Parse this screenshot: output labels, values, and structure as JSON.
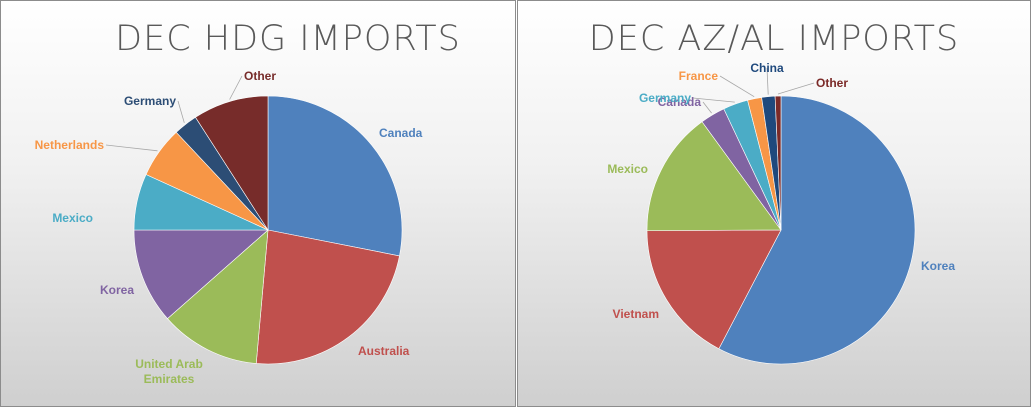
{
  "chart_data": [
    {
      "type": "pie",
      "title": "DEC HDG IMPORTS",
      "categories": [
        "Canada",
        "Australia",
        "United Arab Emirates",
        "Korea",
        "Mexico",
        "Netherlands",
        "Germany",
        "Other"
      ],
      "values": [
        28.1,
        23.3,
        12.1,
        11.5,
        6.8,
        6.2,
        2.9,
        9.1
      ],
      "colors": [
        "#4f81bd",
        "#c0504d",
        "#9bbb59",
        "#8064a2",
        "#4bacc6",
        "#f79646",
        "#2c4d75",
        "#772c2a"
      ],
      "label_lines": [
        [
          "Canada"
        ],
        [
          "Australia"
        ],
        [
          "United Arab",
          "Emirates"
        ],
        [
          "Korea"
        ],
        [
          "Mexico"
        ],
        [
          "Netherlands"
        ],
        [
          "Germany"
        ],
        [
          "Other"
        ]
      ]
    },
    {
      "type": "pie",
      "title": "DEC AZ/AL IMPORTS",
      "categories": [
        "Korea",
        "Vietnam",
        "Mexico",
        "Canada",
        "Germany",
        "France",
        "China",
        "Other"
      ],
      "values": [
        57.5,
        17.2,
        15.0,
        3.0,
        3.0,
        1.7,
        1.6,
        0.7
      ],
      "colors": [
        "#4f81bd",
        "#c0504d",
        "#9bbb59",
        "#8064a2",
        "#4bacc6",
        "#f79646",
        "#1f497d",
        "#7b2a28"
      ],
      "label_lines": [
        [
          "Korea"
        ],
        [
          "Vietnam"
        ],
        [
          "Mexico"
        ],
        [
          "Canada"
        ],
        [
          "Germany"
        ],
        [
          "France"
        ],
        [
          "China"
        ],
        [
          "Other"
        ]
      ]
    }
  ]
}
